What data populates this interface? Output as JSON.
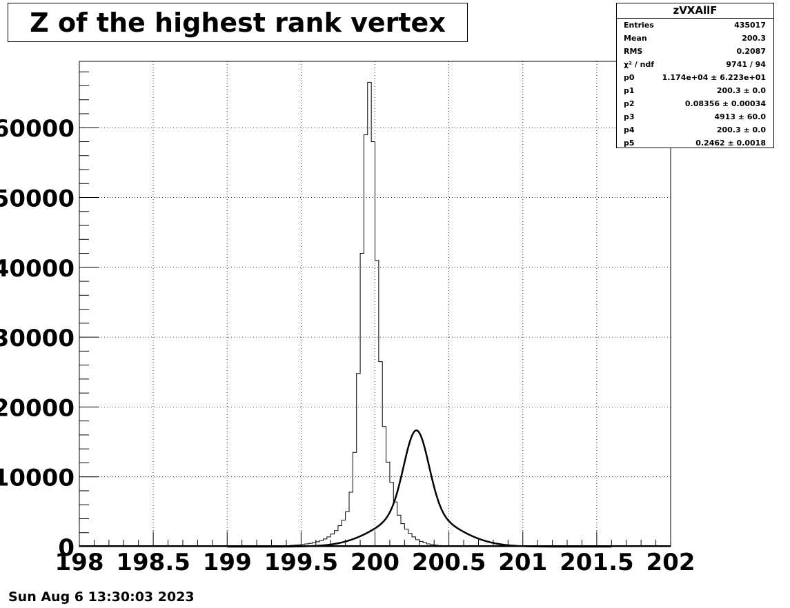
{
  "chart_data": {
    "type": "bar",
    "title": "Z of the highest rank vertex",
    "xlabel": "",
    "ylabel": "",
    "xlim": [
      198,
      202
    ],
    "ylim": [
      0,
      69500
    ],
    "xticks": [
      "198",
      "198.5",
      "199",
      "199.5",
      "200",
      "200.5",
      "201",
      "201.5",
      "202"
    ],
    "yticks": [
      "0",
      "10000",
      "20000",
      "30000",
      "40000",
      "50000",
      "60000"
    ],
    "grid": true,
    "bin_width": 0.025,
    "histogram": {
      "bin_edges_start": 199.25,
      "counts": [
        50,
        60,
        70,
        80,
        100,
        120,
        150,
        180,
        220,
        260,
        320,
        390,
        470,
        570,
        700,
        870,
        1100,
        1400,
        1800,
        2300,
        3000,
        3800,
        5000,
        7800,
        13500,
        24800,
        42000,
        59000,
        66500,
        58000,
        41000,
        26500,
        17200,
        12100,
        9200,
        6400,
        4500,
        3300,
        2500,
        1900,
        1400,
        1000,
        750,
        550,
        400,
        300,
        220,
        160,
        120,
        90,
        70,
        55,
        45,
        35,
        30
      ]
    },
    "fit": {
      "name": "",
      "model": "double gaussian",
      "p0": 11740,
      "p1": 200.3,
      "p2": 0.08356,
      "p3": 4913,
      "p4": 200.3,
      "p5": 0.2462,
      "draw_center": 200.28
    }
  },
  "stats": {
    "name": "zVXAllF",
    "rows": [
      {
        "label": "Entries",
        "value": "435017"
      },
      {
        "label": "Mean",
        "value": "200.3"
      },
      {
        "label": "RMS",
        "value": "0.2087"
      },
      {
        "label": "χ² / ndf",
        "value": "9741 / 94"
      },
      {
        "label": "p0",
        "value": "1.174e+04 ± 6.223e+01"
      },
      {
        "label": "p1",
        "value": "200.3 ± 0.0"
      },
      {
        "label": "p2",
        "value": "0.08356 ± 0.00034"
      },
      {
        "label": "p3",
        "value": "4913 ± 60.0"
      },
      {
        "label": "p4",
        "value": "200.3 ± 0.0"
      },
      {
        "label": "p5",
        "value": "0.2462 ± 0.0018"
      }
    ]
  },
  "date_stamp": "Sun Aug  6 13:30:03 2023"
}
